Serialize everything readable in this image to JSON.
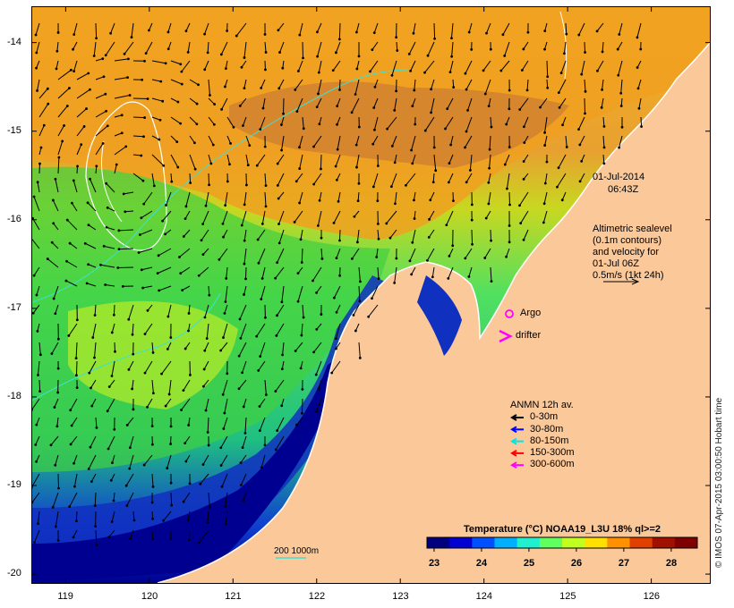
{
  "map": {
    "x_ticks": [
      "119",
      "120",
      "121",
      "122",
      "123",
      "124",
      "125",
      "126"
    ],
    "y_ticks": [
      "-14",
      "-15",
      "-16",
      "-17",
      "-18",
      "-19",
      "-20"
    ],
    "x_range": [
      118.6,
      126.7
    ],
    "y_range": [
      -13.6,
      -20.1
    ]
  },
  "annotations": {
    "date": "01-Jul-2014",
    "time": "06:43Z",
    "sealevel_lines": [
      "Altimetric sealevel",
      "(0.1m contours)",
      "and velocity for",
      "01-Jul 06Z",
      "0.5m/s (1kt 24h)"
    ],
    "argo_label": "Argo",
    "drifter_label": "drifter",
    "scale_label": "200  1000m"
  },
  "anmn_legend": {
    "title": "ANMN 12h av.",
    "items": [
      {
        "label": "0-30m",
        "color": "#000000"
      },
      {
        "label": "30-80m",
        "color": "#0000ff"
      },
      {
        "label": "80-150m",
        "color": "#00e5e5"
      },
      {
        "label": "150-300m",
        "color": "#ff0000"
      },
      {
        "label": "300-600m",
        "color": "#ff00ff"
      }
    ]
  },
  "colorbar": {
    "title": "Temperature (°C) NOAA19_L3U 18% ql>=2",
    "labels": [
      "23",
      "24",
      "25",
      "26",
      "27",
      "28"
    ],
    "range": [
      22.85,
      28.55
    ],
    "colors": [
      "#00007f",
      "#0000d0",
      "#0050ff",
      "#00b0ff",
      "#20f0d0",
      "#60ff60",
      "#c0ff20",
      "#ffe000",
      "#ff9000",
      "#e04000",
      "#a01000",
      "#7f0000"
    ]
  },
  "credit": "© IMOS 07-Apr-2015 03:00:50 Hobart time",
  "colors": {
    "land": "#fbc89a",
    "contour": "#ffffff",
    "track": "#40e0d0"
  }
}
